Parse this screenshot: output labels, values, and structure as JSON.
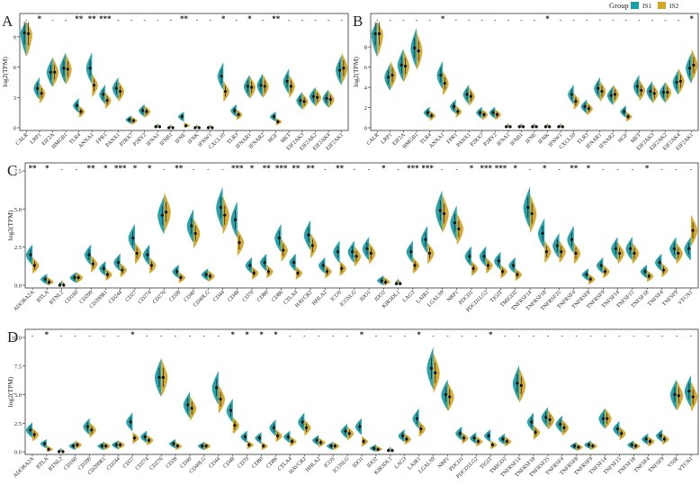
{
  "legend": {
    "title": "Group",
    "groups": [
      {
        "name": "IS1",
        "color": "#1c9ea6"
      },
      {
        "name": "IS2",
        "color": "#d4a62a"
      }
    ]
  },
  "chart_data": [
    {
      "panel": "A",
      "type": "split-violin",
      "ylabel": "log2(TPM)",
      "ylim": [
        0,
        10.5
      ],
      "yticks": [
        0,
        3,
        6,
        9
      ],
      "categories": [
        "CALR",
        "LRP1",
        "EIF2A",
        "HMGB1",
        "TLR4",
        "ANXA1",
        "FPR1",
        "PANX1",
        "P2RX7",
        "P2RY2",
        "IFNA1",
        "IFNB1",
        "IFNE",
        "IFNK",
        "IFNW1",
        "CXCL10",
        "TLR3",
        "IFNAR1",
        "IFNAR2",
        "HGF",
        "MET",
        "EIF2AK3",
        "EIF2AK2",
        "EIF2AK4",
        "EIF2AK1"
      ],
      "significance": [
        "-",
        "*",
        "-",
        "-",
        "**",
        "**",
        "***",
        "-",
        "-",
        "-",
        "-",
        "-",
        "**",
        "-",
        "-",
        "*",
        "-",
        "*",
        "-",
        "**",
        "-",
        "-",
        "-",
        "-",
        "-"
      ],
      "series": [
        {
          "name": "IS1",
          "values": [
            9.4,
            3.9,
            5.5,
            5.9,
            2.2,
            5.9,
            3.3,
            3.9,
            0.8,
            1.7,
            0.1,
            0.0,
            1.1,
            0.0,
            0.0,
            5.1,
            1.7,
            4.1,
            4.2,
            1.1,
            4.6,
            2.7,
            3.1,
            2.9,
            5.7
          ]
        },
        {
          "name": "IS2",
          "values": [
            9.3,
            3.4,
            5.5,
            5.8,
            1.6,
            4.2,
            2.7,
            3.6,
            0.7,
            1.6,
            0.1,
            0.0,
            0.2,
            0.0,
            0.0,
            3.6,
            1.3,
            4.0,
            4.1,
            0.6,
            4.1,
            2.6,
            3.0,
            2.8,
            5.9
          ]
        }
      ]
    },
    {
      "panel": "B",
      "type": "split-violin",
      "ylabel": "log2(TPM)",
      "ylim": [
        0,
        10.5
      ],
      "yticks": [
        0,
        2,
        4,
        6,
        8
      ],
      "categories": [
        "CALR",
        "LRP1",
        "EIF2A",
        "HMGB1",
        "TLR4",
        "ANXA1",
        "FPR1",
        "PANX1",
        "P2RX7",
        "P2RY2",
        "IFNA1",
        "IFNB1",
        "IFNE",
        "IFNK",
        "IFNW1",
        "CXCL10",
        "TLR3",
        "IFNAR1",
        "IFNAR2",
        "HGF",
        "MET",
        "EIF2AK3",
        "EIF2AK2",
        "EIF2AK4",
        "EIF2AK1"
      ],
      "significance": [
        "-",
        "-",
        "-",
        "-",
        "-",
        "*",
        "-",
        "-",
        "-",
        "-",
        "-",
        "-",
        "-",
        "*",
        "-",
        "-",
        "-",
        "-",
        "-",
        "-",
        "-",
        "-",
        "-",
        "-",
        "*"
      ],
      "series": [
        {
          "name": "IS1",
          "values": [
            9.3,
            5.0,
            6.2,
            7.9,
            1.5,
            5.2,
            2.1,
            3.3,
            1.5,
            1.5,
            0.1,
            0.1,
            0.1,
            0.1,
            0.1,
            3.3,
            2.1,
            3.9,
            3.2,
            1.6,
            4.1,
            3.6,
            3.5,
            4.5,
            5.9
          ]
        },
        {
          "name": "IS2",
          "values": [
            9.3,
            5.2,
            6.1,
            7.6,
            1.2,
            4.4,
            1.6,
            3.1,
            1.3,
            1.3,
            0.1,
            0.1,
            0.1,
            0.1,
            0.1,
            2.6,
            1.9,
            3.6,
            3.3,
            1.1,
            3.7,
            3.4,
            3.5,
            4.6,
            6.2
          ]
        }
      ]
    },
    {
      "panel": "C",
      "type": "split-violin",
      "ylabel": "log2(TPM)",
      "ylim": [
        0,
        7.5
      ],
      "yticks": [
        0.0,
        2.5,
        5.0,
        7.5
      ],
      "categories": [
        "ADORA2A",
        "BTLA",
        "BTNL2",
        "CD160",
        "CD200",
        "CD200R1",
        "CD244",
        "CD27",
        "CD274",
        "CD276",
        "CD28",
        "CD40",
        "CD40LG",
        "CD44",
        "CD48",
        "CD70",
        "CD80",
        "CD86",
        "CTLA4",
        "HAVCR2",
        "HHLA2",
        "ICOS",
        "ICOSLG",
        "IDO1",
        "IDO2",
        "KIR3DL1",
        "LAG3",
        "LAIR1",
        "LGALS9",
        "NRP1",
        "PDCD1",
        "PDCD1LG2",
        "TIGIT",
        "TMIGD2",
        "TNFRSF14",
        "TNFRSF18",
        "TNFRSF25",
        "TNFRSF4",
        "TNFRSF8",
        "TNFRSF9",
        "TNFSF14",
        "TNFSF15",
        "TNFSF18",
        "TNFSF4",
        "TNFSF9",
        "VTCN1"
      ],
      "significance": [
        "**",
        "*",
        "-",
        "-",
        "**",
        "*",
        "***",
        "*",
        "*",
        "-",
        "**",
        "-",
        "-",
        "-",
        "***",
        "*",
        "**",
        "***",
        "**",
        "**",
        "-",
        "**",
        "-",
        "-",
        "*",
        "-",
        "***",
        "***",
        "-",
        "-",
        "*",
        "***",
        "***",
        "*",
        "-",
        "*",
        "-",
        "**",
        "*",
        "-",
        "-",
        "-",
        "*",
        "-",
        "-",
        "-"
      ],
      "series": [
        {
          "name": "IS1",
          "values": [
            2.0,
            0.4,
            0.0,
            0.5,
            2.0,
            1.1,
            1.5,
            3.1,
            2.0,
            4.6,
            0.9,
            3.9,
            0.7,
            5.1,
            4.3,
            1.3,
            1.5,
            3.1,
            1.5,
            3.3,
            1.3,
            2.2,
            2.2,
            2.4,
            0.3,
            0.1,
            2.2,
            3.0,
            4.9,
            4.1,
            1.9,
            1.9,
            1.6,
            1.3,
            5.1,
            3.4,
            2.6,
            3.0,
            0.7,
            1.3,
            2.4,
            2.4,
            0.9,
            1.5,
            2.4,
            2.4
          ]
        },
        {
          "name": "IS2",
          "values": [
            1.3,
            0.2,
            0.0,
            0.5,
            1.4,
            0.7,
            1.0,
            2.1,
            1.3,
            4.8,
            0.5,
            3.4,
            0.6,
            4.6,
            2.8,
            0.8,
            0.9,
            2.3,
            0.8,
            2.6,
            0.9,
            1.1,
            1.9,
            2.1,
            0.2,
            0.1,
            1.3,
            2.1,
            4.7,
            3.7,
            1.1,
            1.3,
            0.9,
            0.7,
            4.7,
            2.2,
            2.2,
            2.1,
            0.4,
            0.9,
            2.1,
            2.1,
            0.6,
            1.0,
            2.1,
            3.6
          ]
        }
      ]
    },
    {
      "panel": "D",
      "type": "split-violin",
      "ylabel": "log2(TPM)",
      "ylim": [
        0,
        10.0
      ],
      "yticks": [
        0.0,
        2.5,
        5.0,
        7.5,
        10.0
      ],
      "categories": [
        "ADORA2A",
        "BTLA",
        "BTNL2",
        "CD160",
        "CD200",
        "CD200R1",
        "CD244",
        "CD27",
        "CD274",
        "CD276",
        "CD28",
        "CD40",
        "CD40LG",
        "CD44",
        "CD48",
        "CD70",
        "CD80",
        "CD86",
        "CTLA4",
        "HAVCR2",
        "HHLA2",
        "ICOS",
        "ICOSLG",
        "IDO1",
        "IDO2",
        "KIR3DL1",
        "LAG3",
        "LAIR1",
        "LGALS9",
        "NRP1",
        "PDCD1",
        "PDCD1LG2",
        "TIGIT",
        "TMIGD2",
        "TNFRSF14",
        "TNFRSF18",
        "TNFRSF25",
        "TNFRSF4",
        "TNFRSF8",
        "TNFRSF9",
        "TNFSF14",
        "TNFSF15",
        "TNFSF18",
        "TNFSF4",
        "TNFSF9",
        "VSIR",
        "VTCN1"
      ],
      "significance": [
        "-",
        "*",
        "-",
        "-",
        "-",
        "-",
        "-",
        "*",
        "-",
        "-",
        "-",
        "-",
        "-",
        "-",
        "*",
        "*",
        "*",
        "*",
        "-",
        "-",
        "-",
        "-",
        "-",
        "*",
        "-",
        "-",
        "-",
        "*",
        "-",
        "-",
        "-",
        "-",
        "*",
        "-",
        "-",
        "-",
        "-",
        "-",
        "-",
        "-",
        "-",
        "-",
        "-",
        "-",
        "-",
        "-",
        "-"
      ],
      "series": [
        {
          "name": "IS1",
          "values": [
            1.9,
            0.7,
            0.0,
            0.5,
            2.2,
            0.5,
            0.6,
            2.6,
            1.3,
            6.5,
            0.7,
            4.1,
            0.5,
            5.6,
            3.6,
            1.3,
            1.2,
            2.1,
            1.3,
            2.6,
            1.0,
            0.5,
            1.8,
            2.2,
            0.3,
            0.1,
            1.4,
            2.9,
            7.3,
            5.0,
            1.6,
            1.2,
            1.4,
            1.1,
            6.0,
            2.6,
            3.0,
            2.4,
            0.5,
            0.6,
            2.9,
            2.0,
            0.6,
            1.1,
            1.4,
            5.0,
            5.3
          ]
        },
        {
          "name": "IS2",
          "values": [
            1.5,
            0.2,
            0.0,
            0.6,
            1.9,
            0.5,
            0.6,
            1.2,
            1.0,
            6.5,
            0.5,
            3.8,
            0.5,
            4.6,
            2.3,
            0.6,
            0.5,
            1.4,
            0.9,
            2.1,
            0.8,
            0.5,
            1.6,
            0.9,
            0.2,
            0.1,
            1.1,
            2.0,
            6.9,
            4.8,
            1.2,
            0.9,
            0.6,
            0.9,
            5.8,
            1.7,
            2.8,
            2.1,
            0.4,
            0.5,
            2.9,
            1.6,
            0.5,
            0.9,
            1.1,
            4.9,
            4.8
          ]
        }
      ]
    }
  ]
}
